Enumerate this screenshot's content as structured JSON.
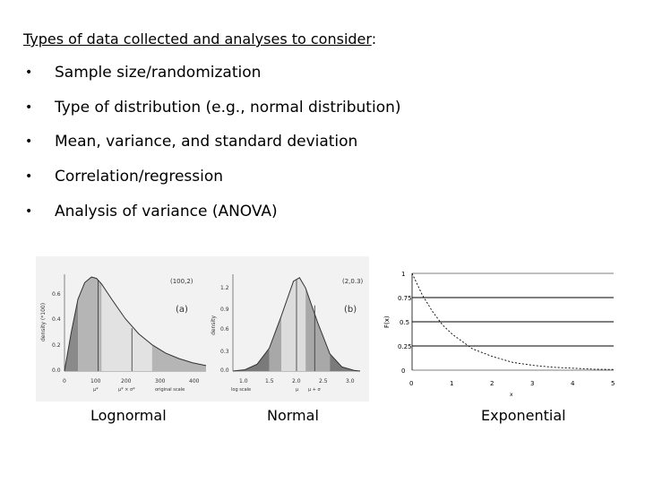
{
  "heading": {
    "underlined": "Types of data collected and analyses to consider",
    "suffix": ":"
  },
  "bullets": [
    "Sample size/randomization",
    "Type of distribution (e.g., normal distribution)",
    "Mean, variance, and standard deviation",
    "Correlation/regression",
    "Analysis of variance (ANOVA)"
  ],
  "figures": {
    "lognormal": {
      "caption": "Lognormal",
      "param": "(100,2)",
      "panel": "(a)",
      "ylabel": "density (*100)",
      "yticks": [
        "0.0",
        "0.2",
        "0.4",
        "0.6"
      ],
      "xticks": [
        "0",
        "100",
        "200",
        "300",
        "400"
      ],
      "xsub": [
        "μ*",
        "μ* × σ*",
        "original scale"
      ]
    },
    "normal": {
      "caption": "Normal",
      "param": "(2,0.3)",
      "panel": "(b)",
      "ylabel": "density",
      "yticks": [
        "0.0",
        "0.3",
        "0.6",
        "0.9",
        "1.2"
      ],
      "xticks": [
        "1.0",
        "1.5",
        "2.0",
        "2.5",
        "3.0"
      ],
      "xsub": [
        "log scale",
        "μ",
        "μ + σ"
      ]
    },
    "exponential": {
      "caption": "Exponential",
      "ylabel": "F(x)",
      "xlabel": "x",
      "yticks": [
        "1",
        "0.75",
        "0.5",
        "0.25",
        "0"
      ],
      "xticks": [
        "0",
        "1",
        "2",
        "3",
        "4",
        "5"
      ]
    }
  },
  "chart_data": [
    {
      "type": "area",
      "title": "",
      "xlabel": "original scale",
      "ylabel": "density (*100)",
      "xlim": [
        0,
        420
      ],
      "ylim": [
        0,
        0.7
      ],
      "series": [
        {
          "x": [
            0,
            20,
            40,
            60,
            80,
            95,
            110,
            140,
            180,
            220,
            260,
            300,
            340,
            380,
            420
          ],
          "y": [
            0,
            0.28,
            0.52,
            0.64,
            0.68,
            0.67,
            0.63,
            0.52,
            0.38,
            0.27,
            0.19,
            0.13,
            0.09,
            0.06,
            0.04
          ]
        }
      ]
    },
    {
      "type": "area",
      "title": "",
      "xlabel": "log scale",
      "ylabel": "density",
      "xlim": [
        1.0,
        3.1
      ],
      "ylim": [
        0,
        1.4
      ],
      "series": [
        {
          "x": [
            1.0,
            1.2,
            1.4,
            1.6,
            1.8,
            2.0,
            2.1,
            2.2,
            2.4,
            2.6,
            2.8,
            3.0,
            3.1
          ],
          "y": [
            0.0,
            0.02,
            0.1,
            0.33,
            0.8,
            1.3,
            1.35,
            1.2,
            0.7,
            0.25,
            0.06,
            0.01,
            0.0
          ]
        }
      ]
    },
    {
      "type": "line",
      "title": "",
      "xlabel": "x",
      "ylabel": "F(x)",
      "xlim": [
        0,
        5
      ],
      "ylim": [
        0,
        1
      ],
      "series": [
        {
          "x": [
            0,
            0.25,
            0.5,
            0.75,
            1,
            1.5,
            2,
            2.5,
            3,
            3.5,
            4,
            4.5,
            5
          ],
          "y": [
            1,
            0.78,
            0.61,
            0.47,
            0.37,
            0.22,
            0.14,
            0.08,
            0.05,
            0.03,
            0.02,
            0.01,
            0.007
          ]
        }
      ]
    }
  ]
}
